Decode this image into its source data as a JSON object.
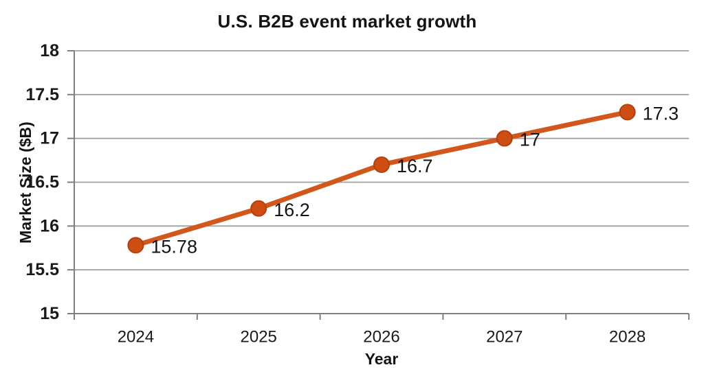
{
  "page": {
    "background": "#ffffff"
  },
  "chart_data": {
    "type": "line",
    "title": "U.S. B2B event market growth",
    "xlabel": "Year",
    "ylabel": "Market Size ($B)",
    "categories": [
      "2024",
      "2025",
      "2026",
      "2027",
      "2028"
    ],
    "series": [
      {
        "name": "Market Size ($B)",
        "values": [
          15.78,
          16.2,
          16.7,
          17,
          17.3
        ]
      }
    ],
    "data_labels": [
      "15.78",
      "16.2",
      "16.7",
      "17",
      "17.3"
    ],
    "ylim": [
      15,
      18
    ],
    "y_tick_step": 0.5,
    "y_ticks": [
      15,
      15.5,
      16,
      16.5,
      17,
      17.5,
      18
    ],
    "y_tick_labels": [
      "15",
      "15.5",
      "16",
      "16.5",
      "17",
      "17.5",
      "18"
    ],
    "grid": "horizontal-only",
    "legend": "none",
    "colors": {
      "line": "#d2571c",
      "marker_fill": "#cd4d12",
      "marker_stroke": "#b04210",
      "gridline": "#a0a0a0",
      "axis": "#7f7f7f",
      "text": "#141414",
      "tick_text": "#1a1a1a"
    }
  }
}
